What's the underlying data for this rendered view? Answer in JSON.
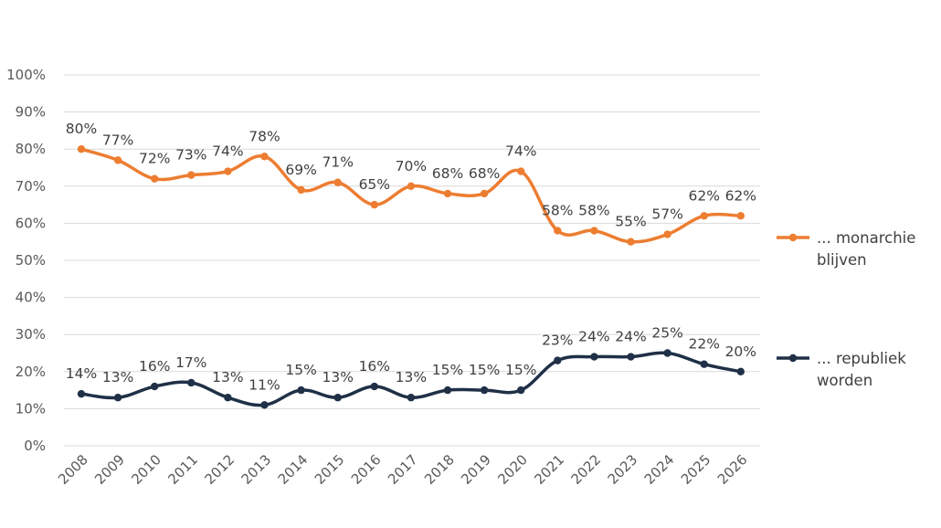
{
  "chart_data": {
    "type": "line",
    "x": [
      "2008",
      "2009",
      "2010",
      "2011",
      "2012",
      "2013",
      "2014",
      "2015",
      "2016",
      "2017",
      "2018",
      "2019",
      "2020",
      "2021",
      "2022",
      "2023",
      "2024",
      "2025",
      "2026"
    ],
    "series": [
      {
        "name": "... monarchie blijven",
        "name_lines": [
          "... monarchie",
          "blijven"
        ],
        "color": "#ed7d31",
        "values": [
          80,
          77,
          72,
          73,
          74,
          78,
          69,
          71,
          65,
          70,
          68,
          68,
          74,
          58,
          58,
          55,
          57,
          62,
          62
        ]
      },
      {
        "name": "... republiek worden",
        "name_lines": [
          "... republiek",
          "worden"
        ],
        "color": "#1f3047",
        "values": [
          14,
          13,
          16,
          17,
          13,
          11,
          15,
          13,
          16,
          13,
          15,
          15,
          15,
          23,
          24,
          24,
          25,
          22,
          20
        ]
      }
    ],
    "yticks": [
      "0%",
      "10%",
      "20%",
      "30%",
      "40%",
      "50%",
      "60%",
      "70%",
      "80%",
      "90%",
      "100%"
    ],
    "ylim": [
      0,
      100
    ],
    "grid": true,
    "legend_position": "right",
    "value_suffix": "%",
    "title": "",
    "xlabel": "",
    "ylabel": ""
  }
}
